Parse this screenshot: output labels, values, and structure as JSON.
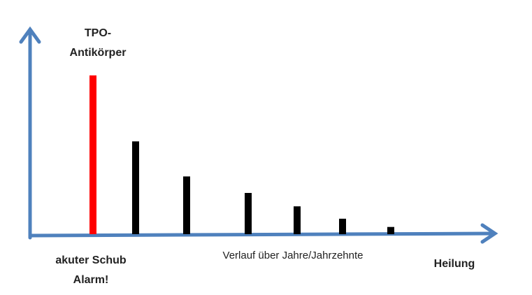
{
  "chart_data": {
    "type": "bar",
    "categories": [
      null,
      null,
      null,
      null,
      null,
      null,
      null
    ],
    "values": [
      77,
      45,
      28,
      20,
      13.5,
      7.5,
      3.5
    ],
    "colors": [
      "#ff0000",
      "#000000",
      "#000000",
      "#000000",
      "#000000",
      "#000000",
      "#000000"
    ],
    "ylim": [
      0,
      100
    ],
    "annotations": {
      "peak_line1": "TPO-",
      "peak_line2": "Antikörper",
      "start_line1": "akuter Schub",
      "start_line2": "Alarm!",
      "x_axis_label": "Verlauf über Jahre/Jahrzehnte",
      "end": "Heilung"
    }
  }
}
